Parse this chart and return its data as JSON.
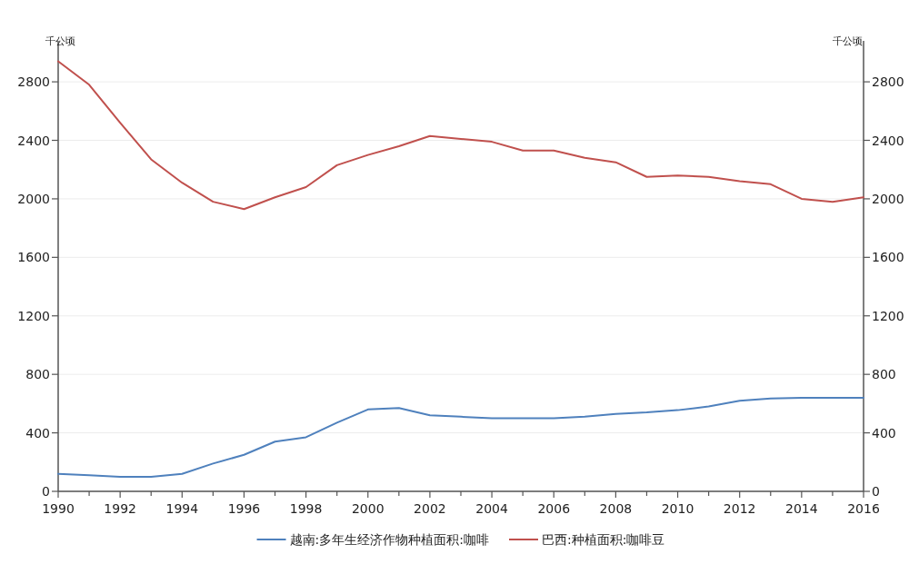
{
  "chart_data": {
    "type": "line",
    "ylabel": "千公顷",
    "y2label": "千公顷",
    "x": [
      1990,
      1991,
      1992,
      1993,
      1994,
      1995,
      1996,
      1997,
      1998,
      1999,
      2000,
      2001,
      2002,
      2003,
      2004,
      2005,
      2006,
      2007,
      2008,
      2009,
      2010,
      2011,
      2012,
      2013,
      2014,
      2015,
      2016
    ],
    "series": [
      {
        "name": "越南:多年生经济作物种植面积:咖啡",
        "color": "#4f81bd",
        "values": [
          120,
          110,
          100,
          100,
          120,
          190,
          250,
          340,
          370,
          470,
          560,
          570,
          520,
          510,
          500,
          500,
          500,
          510,
          530,
          540,
          555,
          580,
          620,
          635,
          640,
          640,
          640
        ]
      },
      {
        "name": "巴西:种植面积:咖啡豆",
        "color": "#c0504d",
        "values": [
          2940,
          2780,
          2520,
          2270,
          2110,
          1980,
          1930,
          2010,
          2080,
          2230,
          2300,
          2360,
          2430,
          2410,
          2390,
          2330,
          2330,
          2280,
          2250,
          2150,
          2160,
          2150,
          2120,
          2100,
          2000,
          1980,
          2010
        ]
      }
    ],
    "xlim": [
      1990,
      2016
    ],
    "xticks": [
      1990,
      {
        "value": 1991,
        "label": null
      },
      1992,
      {
        "value": 1993,
        "label": null
      },
      1994,
      {
        "value": 1995,
        "label": null
      },
      1996,
      {
        "value": 1997,
        "label": null
      },
      1998,
      {
        "value": 1999,
        "label": null
      },
      2000,
      {
        "value": 2001,
        "label": null
      },
      2002,
      {
        "value": 2003,
        "label": null
      },
      2004,
      {
        "value": 2005,
        "label": null
      },
      2006,
      {
        "value": 2007,
        "label": null
      },
      2008,
      {
        "value": 2009,
        "label": null
      },
      2010,
      {
        "value": 2011,
        "label": null
      },
      2012,
      {
        "value": 2013,
        "label": null
      },
      2014,
      {
        "value": 2015,
        "label": null
      },
      2016
    ],
    "ylim": [
      0,
      3080
    ],
    "yticks": [
      0,
      400,
      800,
      1200,
      1600,
      2000,
      2400,
      2800
    ],
    "y2lim": [
      0,
      3080
    ],
    "y2ticks": [
      0,
      400,
      800,
      1200,
      1600,
      2000,
      2400,
      2800
    ],
    "grid": "y",
    "legend": "bottom",
    "marker": "none",
    "line_style": "solid"
  }
}
